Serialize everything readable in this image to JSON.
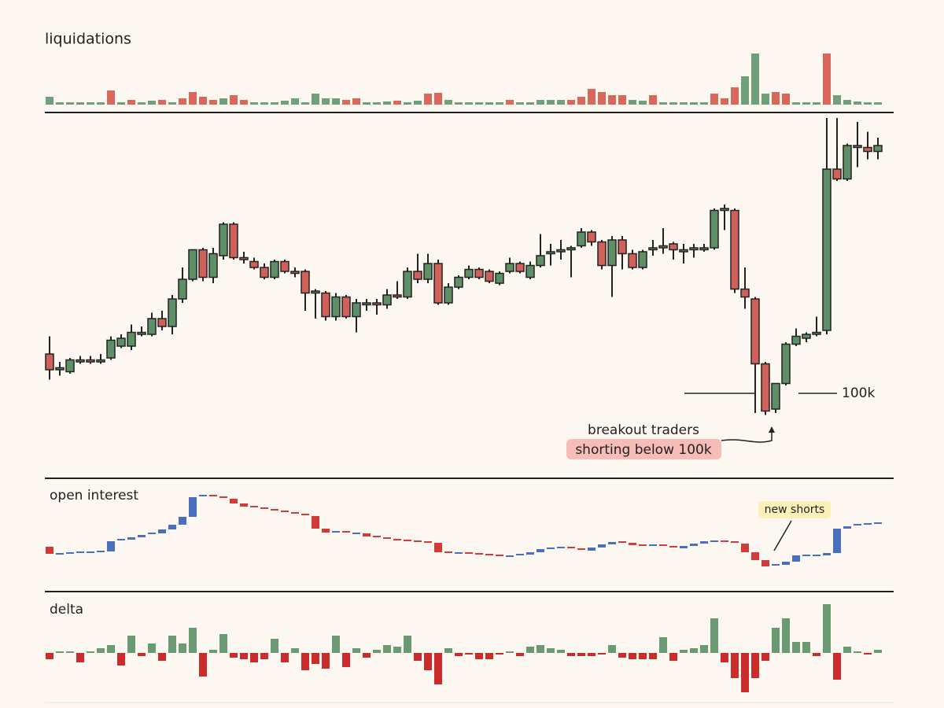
{
  "chart_data": [
    {
      "type": "bar",
      "title": "liquidations",
      "ylim": [
        0,
        65
      ],
      "values": [
        10,
        3,
        3,
        3,
        3,
        3,
        18,
        3,
        6,
        3,
        5,
        6,
        3,
        8,
        16,
        10,
        6,
        8,
        12,
        6,
        3,
        3,
        3,
        5,
        8,
        3,
        14,
        8,
        8,
        6,
        8,
        3,
        3,
        4,
        5,
        3,
        5,
        14,
        15,
        6,
        3,
        3,
        3,
        3,
        3,
        6,
        3,
        3,
        6,
        6,
        6,
        6,
        10,
        20,
        16,
        12,
        12,
        6,
        5,
        12,
        3,
        3,
        3,
        3,
        3,
        14,
        8,
        22,
        36,
        65,
        14,
        16,
        14,
        3,
        3,
        3,
        65,
        12,
        6,
        4,
        3,
        3
      ],
      "colors": [
        "#6fa079",
        "#6fa079",
        "#6fa079",
        "#6fa079",
        "#6fa079",
        "#6fa079",
        "#d9675a",
        "#6fa079",
        "#d9675a",
        "#6fa079",
        "#6fa079",
        "#d9675a",
        "#6fa079",
        "#d9675a",
        "#d9675a",
        "#d9675a",
        "#d9675a",
        "#6fa079",
        "#d9675a",
        "#d9675a",
        "#6fa079",
        "#6fa079",
        "#6fa079",
        "#6fa079",
        "#6fa079",
        "#6fa079",
        "#6fa079",
        "#6fa079",
        "#6fa079",
        "#d9675a",
        "#d9675a",
        "#6fa079",
        "#6fa079",
        "#6fa079",
        "#d9675a",
        "#6fa079",
        "#6fa079",
        "#d9675a",
        "#d9675a",
        "#6fa079",
        "#6fa079",
        "#6fa079",
        "#6fa079",
        "#6fa079",
        "#6fa079",
        "#d9675a",
        "#6fa079",
        "#6fa079",
        "#6fa079",
        "#6fa079",
        "#6fa079",
        "#d9675a",
        "#d9675a",
        "#d9675a",
        "#d9675a",
        "#d9675a",
        "#d9675a",
        "#6fa079",
        "#6fa079",
        "#d9675a",
        "#6fa079",
        "#6fa079",
        "#6fa079",
        "#6fa079",
        "#6fa079",
        "#d9675a",
        "#d9675a",
        "#d9675a",
        "#6fa079",
        "#6fa079",
        "#6fa079",
        "#d9675a",
        "#d9675a",
        "#6fa079",
        "#6fa079",
        "#6fa079",
        "#d9675a",
        "#6fa079",
        "#6fa079",
        "#6fa079",
        "#6fa079",
        "#6fa079"
      ]
    },
    {
      "type": "candlestick",
      "ylim": [
        96,
        114.2
      ],
      "up_color": "#5f8f67",
      "down_color": "#d0605a",
      "level": 100,
      "level_label": "100k",
      "notes": [
        "breakout traders",
        "shorting below 100k"
      ],
      "open": [
        102.0,
        101.2,
        101.1,
        101.6,
        101.7,
        101.6,
        101.8,
        102.4,
        102.4,
        103.0,
        103.0,
        103.8,
        103.4,
        104.8,
        105.8,
        107.3,
        105.9,
        107.0,
        108.6,
        106.9,
        106.7,
        106.4,
        105.9,
        106.7,
        106.2,
        106.2,
        105.1,
        105.1,
        103.9,
        104.9,
        103.9,
        104.5,
        104.6,
        104.5,
        105.0,
        104.9,
        106.2,
        105.8,
        106.6,
        104.6,
        105.4,
        105.9,
        106.3,
        106.2,
        105.6,
        106.2,
        106.6,
        105.9,
        106.5,
        107.1,
        107.2,
        107.3,
        107.5,
        108.2,
        107.7,
        106.5,
        107.8,
        107.1,
        106.4,
        107.3,
        107.4,
        107.6,
        107.2,
        107.3,
        107.3,
        107.4,
        109.3,
        109.3,
        105.3,
        104.8,
        101.5,
        99.2,
        100.5,
        102.5,
        102.8,
        103.0,
        103.2,
        111.4,
        110.9,
        112.5,
        112.5,
        112.3
      ],
      "close": [
        101.2,
        101.3,
        101.7,
        101.7,
        101.6,
        101.7,
        102.7,
        102.8,
        103.1,
        103.1,
        103.8,
        103.4,
        104.8,
        105.8,
        107.3,
        105.9,
        107.1,
        108.6,
        106.9,
        106.8,
        106.4,
        105.9,
        106.7,
        106.2,
        106.1,
        105.1,
        105.2,
        103.9,
        104.9,
        103.9,
        104.6,
        104.6,
        104.5,
        105.0,
        104.9,
        106.2,
        105.8,
        106.6,
        104.6,
        105.4,
        105.9,
        106.3,
        105.9,
        105.7,
        106.1,
        106.6,
        106.2,
        106.5,
        107.0,
        107.2,
        107.3,
        107.4,
        108.2,
        107.7,
        106.5,
        107.8,
        107.1,
        106.4,
        107.2,
        107.4,
        107.5,
        107.3,
        107.3,
        107.4,
        107.4,
        109.3,
        109.4,
        105.3,
        104.9,
        101.5,
        99.1,
        100.5,
        102.5,
        102.9,
        103.0,
        103.1,
        111.4,
        110.9,
        112.6,
        112.6,
        112.3,
        112.6
      ],
      "high": [
        102.9,
        101.6,
        101.8,
        101.9,
        101.9,
        102.0,
        102.9,
        103.0,
        103.5,
        103.4,
        104.1,
        104.2,
        105.0,
        106.4,
        107.3,
        107.4,
        107.4,
        108.7,
        108.7,
        107.2,
        106.9,
        106.6,
        106.8,
        106.8,
        106.4,
        106.3,
        105.3,
        105.2,
        105.1,
        105.0,
        104.8,
        104.8,
        104.8,
        105.3,
        105.7,
        106.4,
        107.1,
        107.1,
        106.8,
        105.6,
        106.0,
        106.5,
        106.4,
        106.3,
        106.2,
        106.9,
        106.7,
        106.7,
        108.1,
        107.6,
        107.8,
        107.5,
        108.4,
        108.3,
        107.8,
        108.0,
        108.0,
        107.3,
        107.3,
        107.8,
        108.4,
        107.7,
        107.6,
        107.6,
        107.6,
        109.4,
        109.6,
        109.4,
        106.4,
        104.9,
        101.6,
        100.5,
        102.6,
        103.3,
        103.1,
        103.9,
        114.0,
        114.0,
        112.7,
        113.8,
        113.3,
        113.0
      ],
      "low": [
        100.7,
        100.9,
        101.0,
        101.5,
        101.5,
        101.5,
        101.7,
        102.3,
        102.2,
        102.9,
        102.9,
        103.2,
        103.0,
        104.6,
        105.7,
        105.7,
        105.6,
        106.8,
        106.8,
        106.6,
        106.3,
        105.8,
        105.8,
        106.1,
        105.9,
        104.2,
        103.8,
        103.7,
        103.7,
        103.8,
        103.1,
        104.2,
        104.0,
        104.3,
        104.8,
        104.8,
        105.6,
        105.6,
        104.5,
        104.5,
        105.3,
        105.8,
        105.8,
        105.6,
        105.5,
        106.1,
        106.1,
        105.8,
        106.4,
        106.5,
        106.8,
        105.9,
        107.4,
        107.5,
        106.3,
        104.9,
        106.3,
        106.3,
        106.3,
        107.0,
        107.1,
        106.8,
        106.6,
        106.9,
        107.2,
        107.3,
        108.3,
        105.1,
        104.3,
        99.0,
        98.9,
        99.0,
        100.4,
        102.4,
        102.6,
        102.9,
        103.0,
        110.8,
        110.8,
        111.5,
        111.9,
        111.9
      ]
    },
    {
      "type": "candlestick",
      "title": "open interest",
      "ylim": [
        15,
        145
      ],
      "up_color": "#4a6fc0",
      "down_color": "#d33a3a",
      "notes": [
        "new shorts"
      ],
      "open": [
        65,
        56,
        56,
        57,
        58,
        58,
        59,
        72,
        74,
        77,
        80,
        82,
        87,
        93,
        103,
        128,
        130,
        128,
        126,
        120,
        116,
        114,
        112,
        110,
        108,
        106,
        104,
        88,
        83,
        84,
        82,
        82,
        78,
        76,
        74,
        73,
        72,
        71,
        70,
        58,
        57,
        57,
        56,
        55,
        54,
        53,
        53,
        55,
        58,
        62,
        63,
        64,
        62,
        60,
        64,
        68,
        71,
        70,
        67,
        66,
        67,
        65,
        63,
        66,
        69,
        72,
        72,
        71,
        69,
        58,
        48,
        40,
        42,
        46,
        54,
        54,
        54,
        57,
        88,
        91,
        93,
        94
      ],
      "close": [
        56,
        56,
        57,
        58,
        58,
        59,
        72,
        74,
        77,
        80,
        82,
        87,
        93,
        103,
        128,
        130,
        128,
        126,
        120,
        116,
        114,
        112,
        110,
        108,
        106,
        104,
        88,
        83,
        84,
        82,
        82,
        78,
        76,
        74,
        73,
        72,
        71,
        70,
        58,
        57,
        57,
        56,
        55,
        54,
        53,
        53,
        55,
        58,
        62,
        63,
        64,
        62,
        60,
        64,
        68,
        71,
        70,
        67,
        66,
        67,
        65,
        63,
        66,
        69,
        72,
        72,
        71,
        69,
        58,
        48,
        40,
        42,
        46,
        54,
        54,
        54,
        57,
        88,
        91,
        93,
        94,
        95
      ]
    },
    {
      "type": "bar",
      "title": "delta",
      "ylim": [
        -60,
        70
      ],
      "up_color": "#6a9a72",
      "down_color": "#cc2b2b",
      "values": [
        -8,
        2,
        2,
        -12,
        2,
        6,
        10,
        -16,
        22,
        -4,
        12,
        -10,
        22,
        12,
        32,
        -30,
        4,
        24,
        -6,
        -8,
        -12,
        -8,
        18,
        -12,
        6,
        -22,
        -14,
        -20,
        22,
        -18,
        6,
        -6,
        4,
        10,
        8,
        22,
        -10,
        -22,
        -40,
        6,
        -4,
        -2,
        -8,
        -8,
        -2,
        2,
        -4,
        8,
        10,
        6,
        4,
        -4,
        -4,
        -4,
        -2,
        10,
        -6,
        -8,
        -8,
        -8,
        20,
        -10,
        4,
        6,
        10,
        44,
        -12,
        -32,
        -50,
        -32,
        -10,
        32,
        44,
        14,
        14,
        -4,
        62,
        -34,
        8,
        2,
        -2,
        4
      ]
    }
  ]
}
